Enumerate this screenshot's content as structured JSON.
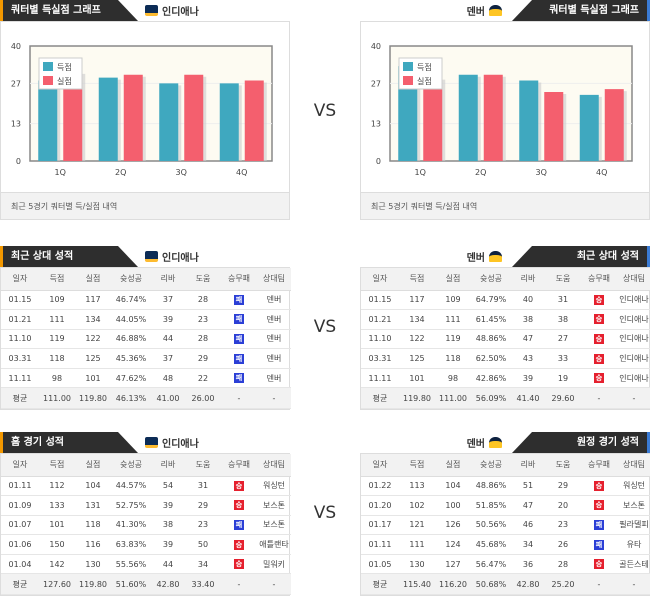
{
  "vs_label": "VS",
  "colors": {
    "scored": "#3fa8bf",
    "allowed": "#f45f6e",
    "win": "#e5202e",
    "loss": "#2b3fd6",
    "header": "#2e2e2e",
    "left_accent": "#f39800",
    "right_accent": "#3a7bd5"
  },
  "teams": {
    "home": {
      "name": "인디애나",
      "logo": "pacers-logo"
    },
    "away": {
      "name": "덴버",
      "logo": "nuggets-logo"
    }
  },
  "quarter_section": {
    "title": "쿼터별 득실점 그래프",
    "caption": "최근 5경기 쿼터별 득/실점 내역"
  },
  "chart_data": [
    {
      "type": "bar",
      "team": "인디애나",
      "categories": [
        "1Q",
        "2Q",
        "3Q",
        "4Q"
      ],
      "yticks": [
        0,
        13,
        27,
        40
      ],
      "ylim": [
        0,
        40
      ],
      "legend": "top-left",
      "series": [
        {
          "name": "득점",
          "values": [
            28,
            29,
            27,
            27
          ]
        },
        {
          "name": "실점",
          "values": [
            31,
            30,
            30,
            28
          ]
        }
      ]
    },
    {
      "type": "bar",
      "team": "덴버",
      "categories": [
        "1Q",
        "2Q",
        "3Q",
        "4Q"
      ],
      "yticks": [
        0,
        13,
        27,
        40
      ],
      "ylim": [
        0,
        40
      ],
      "legend": "top-left",
      "series": [
        {
          "name": "득점",
          "values": [
            33,
            30,
            28,
            23
          ]
        },
        {
          "name": "실점",
          "values": [
            29,
            30,
            24,
            25
          ]
        }
      ]
    }
  ],
  "columns": [
    "일자",
    "득점",
    "실점",
    "슛성공",
    "리바",
    "도움",
    "승무패",
    "상대팀"
  ],
  "sections": [
    {
      "left": {
        "title": "최근 상대 성적",
        "team": "인디애나",
        "rows": [
          [
            "01.15",
            "109",
            "117",
            "46.74%",
            "37",
            "28",
            "패",
            "덴버"
          ],
          [
            "01.21",
            "111",
            "134",
            "44.05%",
            "39",
            "23",
            "패",
            "덴버"
          ],
          [
            "11.10",
            "119",
            "122",
            "46.88%",
            "44",
            "28",
            "패",
            "덴버"
          ],
          [
            "03.31",
            "118",
            "125",
            "45.36%",
            "37",
            "29",
            "패",
            "덴버"
          ],
          [
            "11.11",
            "98",
            "101",
            "47.62%",
            "48",
            "22",
            "패",
            "덴버"
          ]
        ],
        "avg": [
          "평균",
          "111.00",
          "119.80",
          "46.13%",
          "41.00",
          "26.00",
          "-",
          "-"
        ]
      },
      "right": {
        "title": "최근 상대 성적",
        "team": "덴버",
        "rows": [
          [
            "01.15",
            "117",
            "109",
            "64.79%",
            "40",
            "31",
            "승",
            "인디애나"
          ],
          [
            "01.21",
            "134",
            "111",
            "61.45%",
            "38",
            "38",
            "승",
            "인디애나"
          ],
          [
            "11.10",
            "122",
            "119",
            "48.86%",
            "47",
            "27",
            "승",
            "인디애나"
          ],
          [
            "03.31",
            "125",
            "118",
            "62.50%",
            "43",
            "33",
            "승",
            "인디애나"
          ],
          [
            "11.11",
            "101",
            "98",
            "42.86%",
            "39",
            "19",
            "승",
            "인디애나"
          ]
        ],
        "avg": [
          "평균",
          "119.80",
          "111.00",
          "56.09%",
          "41.40",
          "29.60",
          "-",
          "-"
        ]
      }
    },
    {
      "left": {
        "title": "홈 경기 성적",
        "team": "인디애나",
        "rows": [
          [
            "01.11",
            "112",
            "104",
            "44.57%",
            "54",
            "31",
            "승",
            "워싱턴"
          ],
          [
            "01.09",
            "133",
            "131",
            "52.75%",
            "39",
            "29",
            "승",
            "보스톤"
          ],
          [
            "01.07",
            "101",
            "118",
            "41.30%",
            "38",
            "23",
            "패",
            "보스톤"
          ],
          [
            "01.06",
            "150",
            "116",
            "63.83%",
            "39",
            "50",
            "승",
            "애틀랜타"
          ],
          [
            "01.04",
            "142",
            "130",
            "55.56%",
            "44",
            "34",
            "승",
            "밀워키"
          ]
        ],
        "avg": [
          "평균",
          "127.60",
          "119.80",
          "51.60%",
          "42.80",
          "33.40",
          "-",
          "-"
        ]
      },
      "right": {
        "title": "원정 경기 성적",
        "team": "덴버",
        "rows": [
          [
            "01.22",
            "113",
            "104",
            "48.86%",
            "51",
            "29",
            "승",
            "워싱턴"
          ],
          [
            "01.20",
            "102",
            "100",
            "51.85%",
            "47",
            "20",
            "승",
            "보스톤"
          ],
          [
            "01.17",
            "121",
            "126",
            "50.56%",
            "46",
            "23",
            "패",
            "필라델피"
          ],
          [
            "01.11",
            "111",
            "124",
            "45.68%",
            "34",
            "26",
            "패",
            "유타"
          ],
          [
            "01.05",
            "130",
            "127",
            "56.47%",
            "36",
            "28",
            "승",
            "골든스테"
          ]
        ],
        "avg": [
          "평균",
          "115.40",
          "116.20",
          "50.68%",
          "42.80",
          "25.20",
          "-",
          "-"
        ]
      }
    }
  ]
}
